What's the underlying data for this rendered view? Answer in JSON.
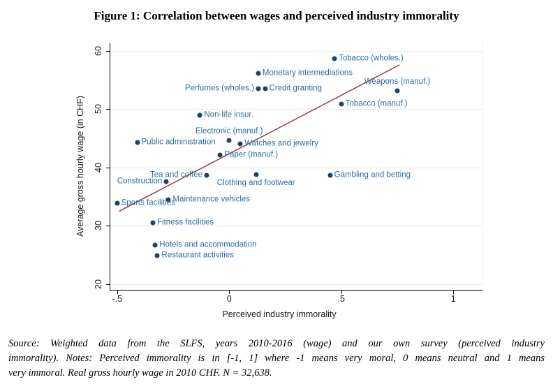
{
  "title": "Figure 1: Correlation between wages and perceived industry immorality",
  "chart_data": {
    "type": "scatter",
    "title": "Figure 1: Correlation between wages and perceived industry immorality",
    "xlabel": "Perceived industry immorality",
    "ylabel": "Average gross hourly wage (in CHF)",
    "xlim": [
      -0.53,
      1.13
    ],
    "ylim": [
      19,
      61.3
    ],
    "x_ticks": [
      {
        "value": -0.5,
        "label": "-.5"
      },
      {
        "value": 0,
        "label": "0"
      },
      {
        "value": 0.5,
        "label": ".5"
      },
      {
        "value": 1,
        "label": "1"
      }
    ],
    "y_ticks": [
      {
        "value": 20,
        "label": "20"
      },
      {
        "value": 30,
        "label": "30"
      },
      {
        "value": 40,
        "label": "40"
      },
      {
        "value": 50,
        "label": "50"
      },
      {
        "value": 60,
        "label": "60"
      }
    ],
    "grid": "horizontal-only",
    "legend_position": "none",
    "points": [
      {
        "label": "Tobacco (wholes.)",
        "x": 0.47,
        "y": 58.7,
        "label_pos": "right"
      },
      {
        "label": "Monetary intermediations",
        "x": 0.13,
        "y": 56.2,
        "label_pos": "right"
      },
      {
        "label": "Perfumes (wholes.)",
        "x": 0.13,
        "y": 53.5,
        "label_pos": "left"
      },
      {
        "label": "Credit granting",
        "x": 0.16,
        "y": 53.5,
        "label_pos": "right"
      },
      {
        "label": "Weapons (manuf.)",
        "x": 0.75,
        "y": 53.1,
        "label_pos": "above"
      },
      {
        "label": "Tobacco (manuf.)",
        "x": 0.5,
        "y": 50.9,
        "label_pos": "right"
      },
      {
        "label": "Non-life insur.",
        "x": -0.13,
        "y": 48.9,
        "label_pos": "right"
      },
      {
        "label": "Electronic (manuf.)",
        "x": 0,
        "y": 44.6,
        "label_pos": "above"
      },
      {
        "label": "Public administration",
        "x": -0.41,
        "y": 44.3,
        "label_pos": "right"
      },
      {
        "label": "Watches and jewelry",
        "x": 0.05,
        "y": 44,
        "label_pos": "right"
      },
      {
        "label": "Paper (manuf.)",
        "x": -0.04,
        "y": 42.1,
        "label_pos": "right"
      },
      {
        "label": "Tea and coffee",
        "x": -0.1,
        "y": 38.7,
        "label_pos": "left"
      },
      {
        "label": "Clothing and footwear",
        "x": 0.12,
        "y": 38.8,
        "label_pos": "below"
      },
      {
        "label": "Gambling and betting",
        "x": 0.45,
        "y": 38.7,
        "label_pos": "right"
      },
      {
        "label": "Construction",
        "x": -0.28,
        "y": 37.6,
        "label_pos": "left"
      },
      {
        "label": "Maintenance vehicles",
        "x": -0.27,
        "y": 34.5,
        "label_pos": "right"
      },
      {
        "label": "Sports facilities",
        "x": -0.5,
        "y": 33.9,
        "label_pos": "right"
      },
      {
        "label": "Fitness facilities",
        "x": -0.34,
        "y": 30.5,
        "label_pos": "right"
      },
      {
        "label": "Hotels and accommodation",
        "x": -0.33,
        "y": 26.7,
        "label_pos": "right"
      },
      {
        "label": "Restaurant activities",
        "x": -0.32,
        "y": 24.9,
        "label_pos": "right"
      }
    ],
    "fit_line": {
      "x1": -0.49,
      "y1": 32.5,
      "x2": 0.76,
      "y2": 57.6
    },
    "colors": {
      "point": "#1b4268",
      "point_label": "#2e6da4",
      "fit_line": "#944040",
      "gridline": "#e3ebf2",
      "axis": "#000000"
    }
  },
  "source_note": {
    "lines": [
      "Source: Weighted data from the SLFS, years 2010-2016 (wage) and our own survey (perceived industry",
      "immorality). Notes: Perceived immorality is in [-1, 1] where -1 means very moral, 0 means neutral and 1 means",
      "very immoral. Real gross hourly wage in 2010 CHF. N = 32,638."
    ]
  }
}
